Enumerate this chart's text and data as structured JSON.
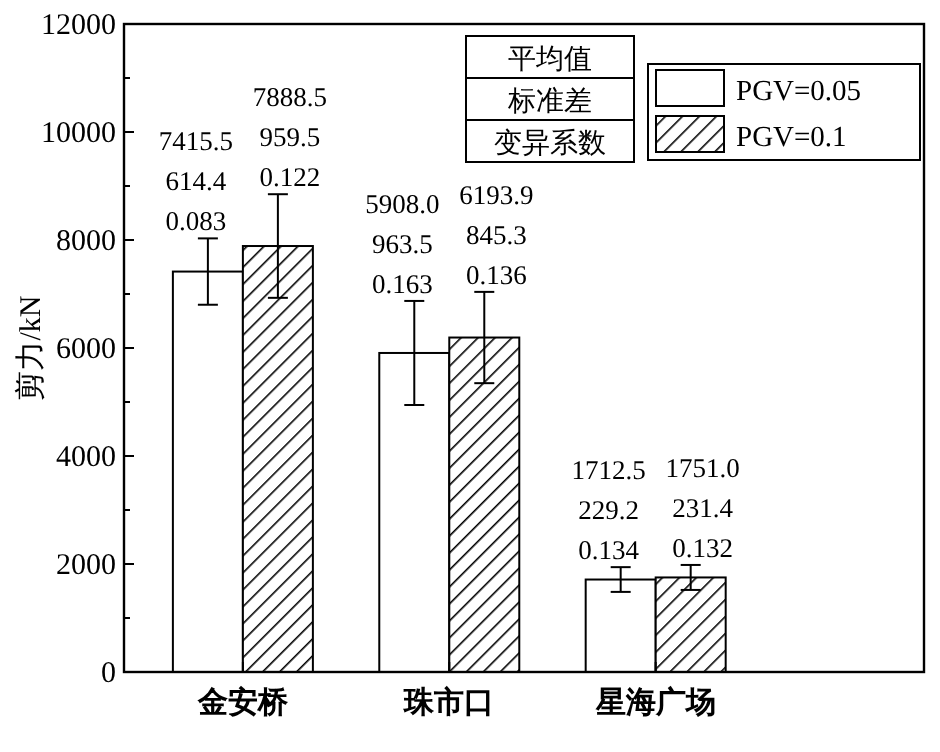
{
  "chart_data": {
    "type": "bar",
    "ylabel": "剪力/kN",
    "categories": [
      "金安桥",
      "珠市口",
      "星海广场"
    ],
    "series": [
      {
        "name": "PGV=0.05",
        "color": "#ffffff",
        "values": [
          7415.5,
          5908.0,
          1712.5
        ],
        "errors": [
          614.4,
          963.5,
          229.2
        ],
        "value_labels": [
          "7415.5\n614.4\n0.083",
          "5908.0\n963.5\n0.163",
          "1712.5\n229.2\n0.134"
        ]
      },
      {
        "name": "PGV=0.1",
        "color": "#000000",
        "values": [
          7888.5,
          6193.9,
          1751.0
        ],
        "errors": [
          959.5,
          845.3,
          231.4
        ],
        "value_labels": [
          "7888.5\n959.5\n0.122",
          "6193.9\n845.3\n0.136",
          "1751.0\n231.4\n0.132"
        ]
      }
    ],
    "annotations": [
      "平均值",
      "标准差",
      "变异系数"
    ],
    "ylim": [
      0,
      12000
    ],
    "yticks": [
      0,
      2000,
      4000,
      6000,
      8000,
      10000,
      12000
    ],
    "legend": "top right"
  }
}
